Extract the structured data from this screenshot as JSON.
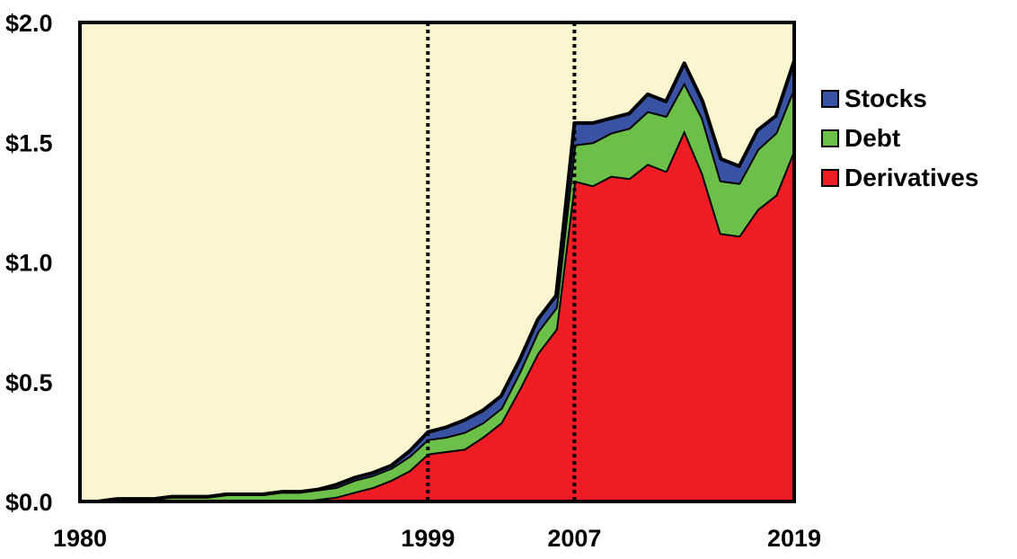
{
  "chart_data": {
    "type": "area",
    "stacked": true,
    "ylim": [
      0,
      2.0
    ],
    "xlim": [
      1980,
      2019
    ],
    "yticks": [
      {
        "value": 0.0,
        "label": "$0.0"
      },
      {
        "value": 0.5,
        "label": "$0.5"
      },
      {
        "value": 1.0,
        "label": "$1.0"
      },
      {
        "value": 1.5,
        "label": "$1.5"
      },
      {
        "value": 2.0,
        "label": "$2.0"
      }
    ],
    "xticks": [
      {
        "value": 1980,
        "label": "1980"
      },
      {
        "value": 1999,
        "label": "1999"
      },
      {
        "value": 2007,
        "label": "2007"
      },
      {
        "value": 2019,
        "label": "2019"
      }
    ],
    "vlines": [
      1999,
      2007
    ],
    "x": [
      1980,
      1981,
      1982,
      1983,
      1984,
      1985,
      1986,
      1987,
      1988,
      1989,
      1990,
      1991,
      1992,
      1993,
      1994,
      1995,
      1996,
      1997,
      1998,
      1999,
      2000,
      2001,
      2002,
      2003,
      2004,
      2005,
      2006,
      2007,
      2008,
      2009,
      2010,
      2011,
      2012,
      2013,
      2014,
      2015,
      2016,
      2017,
      2018,
      2019
    ],
    "series": [
      {
        "name": "Derivatives",
        "color": "#ee1c25",
        "values": [
          0,
          0,
          0,
          0,
          0,
          0,
          0,
          0,
          0,
          0,
          0,
          0,
          0,
          0.01,
          0.02,
          0.04,
          0.06,
          0.09,
          0.13,
          0.2,
          0.21,
          0.22,
          0.27,
          0.33,
          0.47,
          0.62,
          0.72,
          1.34,
          1.32,
          1.36,
          1.35,
          1.41,
          1.38,
          1.55,
          1.37,
          1.12,
          1.11,
          1.22,
          1.28,
          1.47
        ]
      },
      {
        "name": "Debt",
        "color": "#6cc04a",
        "values": [
          0,
          0,
          0.01,
          0.01,
          0.01,
          0.02,
          0.02,
          0.02,
          0.03,
          0.03,
          0.03,
          0.04,
          0.04,
          0.04,
          0.04,
          0.05,
          0.05,
          0.05,
          0.06,
          0.06,
          0.06,
          0.07,
          0.06,
          0.06,
          0.07,
          0.09,
          0.09,
          0.15,
          0.18,
          0.18,
          0.21,
          0.22,
          0.23,
          0.2,
          0.23,
          0.22,
          0.22,
          0.25,
          0.26,
          0.26
        ]
      },
      {
        "name": "Stocks",
        "color": "#3953a4",
        "values": [
          0,
          0,
          0,
          0,
          0,
          0,
          0,
          0,
          0,
          0,
          0,
          0,
          0,
          0,
          0.01,
          0.01,
          0.01,
          0.01,
          0.02,
          0.03,
          0.04,
          0.05,
          0.05,
          0.05,
          0.05,
          0.05,
          0.05,
          0.09,
          0.08,
          0.06,
          0.06,
          0.07,
          0.06,
          0.08,
          0.07,
          0.09,
          0.07,
          0.08,
          0.07,
          0.11
        ]
      }
    ],
    "legend_order": [
      "Stocks",
      "Debt",
      "Derivatives"
    ],
    "legend_position": "right",
    "background_color": "#fbf6cf"
  },
  "legend": {
    "items": [
      {
        "label": "Stocks",
        "color": "#3953a4"
      },
      {
        "label": "Debt",
        "color": "#6cc04a"
      },
      {
        "label": "Derivatives",
        "color": "#ee1c25"
      }
    ]
  }
}
